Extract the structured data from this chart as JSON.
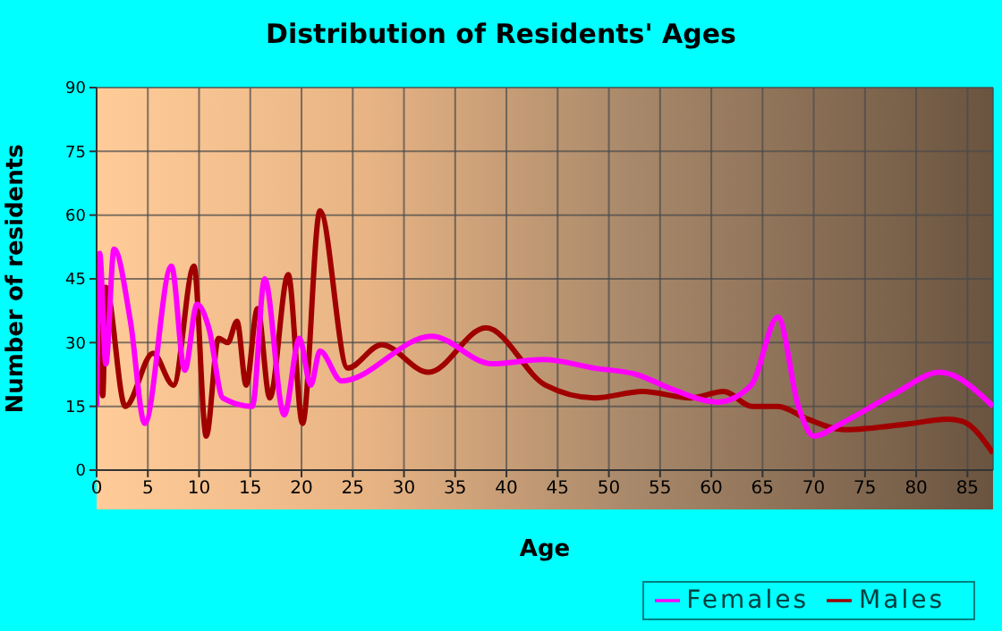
{
  "chart_data": {
    "type": "line",
    "title": "Distribution of Residents' Ages",
    "xlabel": "Age",
    "ylabel": "Number of residents",
    "xlim": [
      0,
      87.5
    ],
    "xticks": [
      0,
      5,
      10,
      15,
      20,
      25,
      30,
      35,
      40,
      45,
      50,
      55,
      60,
      65,
      70,
      75,
      80,
      85
    ],
    "ylim": [
      0,
      90
    ],
    "yticks": [
      0,
      15,
      30,
      45,
      60,
      75,
      90
    ],
    "grid": true,
    "legend": "bottom right",
    "marker": "none",
    "line_style": "solid",
    "series": [
      {
        "name": "Males",
        "color": "#a00000",
        "x": [
          0,
          0.6,
          0.9,
          2.8,
          5.5,
          7.5,
          9.5,
          10.7,
          11.9,
          12.8,
          13.7,
          14.6,
          15.7,
          16.9,
          18.7,
          20.1,
          21.8,
          24.5,
          27.8,
          32.4,
          38,
          43.8,
          48.6,
          53.3,
          58,
          61.2,
          64,
          66.5,
          69.4,
          73,
          79.6,
          83,
          84.5,
          87.5
        ],
        "values": [
          48,
          17.5,
          43,
          15,
          27.5,
          20,
          48,
          8,
          31,
          30,
          35,
          20,
          38,
          17,
          46,
          11,
          61,
          24,
          29.5,
          23,
          33.5,
          20,
          17,
          18.5,
          17,
          18.5,
          15,
          15,
          12,
          9.5,
          11,
          12,
          11.5,
          4
        ]
      },
      {
        "name": "Females",
        "color": "#ff00ff",
        "x": [
          0,
          0.3,
          0.9,
          1.7,
          3.3,
          4.7,
          7.3,
          8.6,
          9.8,
          11,
          12.3,
          15.2,
          16.4,
          18.3,
          19.8,
          20.9,
          21.8,
          23.9,
          32.7,
          38.6,
          43.6,
          48.6,
          52.7,
          56.2,
          60.6,
          63.9,
          66.5,
          68.5,
          70,
          72.7,
          77.9,
          82.3,
          87.5
        ],
        "values": [
          15,
          51,
          25,
          52,
          35,
          11,
          48,
          23.5,
          39,
          33,
          17,
          15,
          45,
          13,
          31,
          20,
          28,
          21,
          31.5,
          25,
          26,
          24,
          22.5,
          19,
          16,
          20,
          36,
          15,
          8,
          11,
          18,
          23,
          15
        ]
      }
    ]
  }
}
